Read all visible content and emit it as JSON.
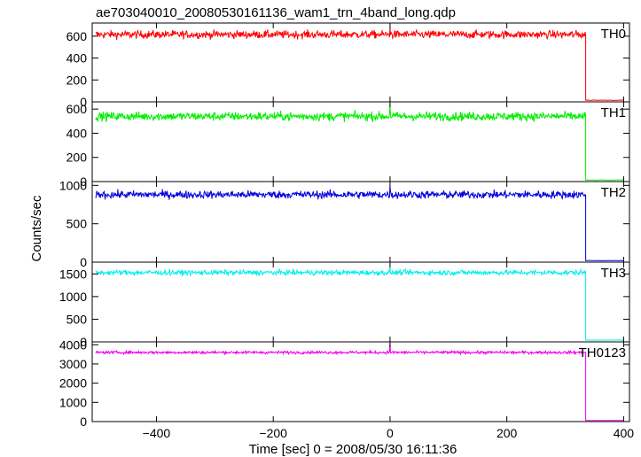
{
  "chart_data": {
    "type": "line",
    "title": "ae703040010_20080530161136_wam1_trn_4band_long.qdp",
    "xlabel": "Time [sec] 0 = 2008/05/30 16:11:36",
    "ylabel": "Counts/sec",
    "xlim": [
      -510,
      410
    ],
    "xticks": [
      -400,
      -200,
      0,
      200,
      400
    ],
    "grid": false,
    "drop_time": 335,
    "spike_time": 0,
    "panels": [
      {
        "name": "TH0",
        "color": "#ff0000",
        "ylim": [
          0,
          720
        ],
        "yticks": [
          0,
          200,
          400,
          600
        ],
        "level_before": 615,
        "noise": 25,
        "spike_value": 680,
        "level_after": 15
      },
      {
        "name": "TH1",
        "color": "#00ee00",
        "ylim": [
          0,
          660
        ],
        "yticks": [
          0,
          200,
          400,
          600
        ],
        "level_before": 540,
        "noise": 25,
        "spike_value": 640,
        "level_after": 12
      },
      {
        "name": "TH2",
        "color": "#0000dd",
        "ylim": [
          0,
          1050
        ],
        "yticks": [
          0,
          500,
          1000
        ],
        "level_before": 880,
        "noise": 35,
        "spike_value": 990,
        "level_after": 20
      },
      {
        "name": "TH3",
        "color": "#00eeee",
        "ylim": [
          0,
          1760
        ],
        "yticks": [
          0,
          500,
          1000,
          1500
        ],
        "level_before": 1530,
        "noise": 40,
        "spike_value": 1650,
        "level_after": 40
      },
      {
        "name": "TH0123",
        "color": "#ee00ee",
        "ylim": [
          0,
          4150
        ],
        "yticks": [
          0,
          1000,
          2000,
          3000,
          4000
        ],
        "level_before": 3600,
        "noise": 50,
        "spike_value": 4100,
        "level_after": 60
      }
    ]
  }
}
